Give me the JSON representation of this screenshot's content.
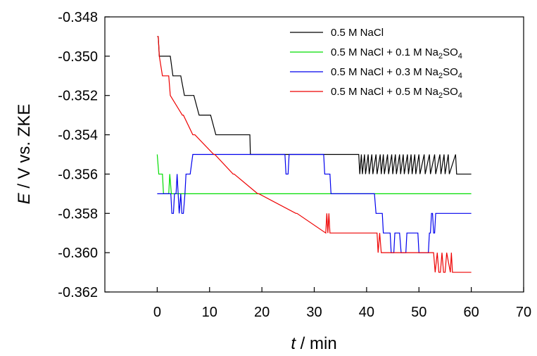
{
  "chart_data": {
    "type": "line",
    "xlim": [
      -10,
      70
    ],
    "ylim": [
      -0.362,
      -0.348
    ],
    "x_ticks": [
      0,
      10,
      20,
      30,
      40,
      50,
      60,
      70
    ],
    "x_tick_labels": [
      "0",
      "10",
      "20",
      "30",
      "40",
      "50",
      "60",
      "70"
    ],
    "y_ticks": [
      -0.348,
      -0.35,
      -0.352,
      -0.354,
      -0.356,
      -0.358,
      -0.36,
      -0.362
    ],
    "y_tick_labels": [
      "-0.348",
      "-0.350",
      "-0.352",
      "-0.354",
      "-0.356",
      "-0.358",
      "-0.360",
      "-0.362"
    ],
    "xlabel": {
      "var": "t",
      "rest": " / min"
    },
    "ylabel": {
      "var": "E",
      "rest": " / V vs. ZKE"
    },
    "grid": false,
    "legend_position": "top-right",
    "series": [
      {
        "name": "0.5 M NaCl",
        "name_parts": {
          "main": "0.5 M NaCl",
          "sub1": "",
          "mid": "",
          "sub2": ""
        },
        "color": "#000000",
        "x": [
          0.0,
          0.2,
          0.4,
          1.3,
          2.5,
          3.0,
          4.5,
          5.2,
          6.3,
          7.0,
          8.0,
          10.2,
          11.2,
          17.5,
          17.7,
          17.8,
          18.0,
          38.5,
          38.7,
          39.0,
          39.2,
          39.6,
          39.8,
          40.3,
          40.5,
          41.0,
          41.2,
          41.8,
          42.0,
          42.6,
          42.8,
          43.2,
          43.4,
          44.0,
          44.2,
          44.8,
          45.0,
          45.5,
          45.7,
          46.3,
          46.5,
          47.0,
          47.2,
          47.8,
          48.0,
          48.5,
          48.7,
          49.2,
          49.4,
          50.0,
          50.2,
          51.0,
          51.2,
          52.0,
          52.2,
          53.0,
          53.2,
          54.0,
          54.2,
          54.8,
          55.0,
          55.6,
          55.8,
          57.0,
          57.2,
          60.0
        ],
        "y": [
          -0.349,
          -0.349,
          -0.35,
          -0.35,
          -0.35,
          -0.351,
          -0.351,
          -0.352,
          -0.352,
          -0.352,
          -0.353,
          -0.353,
          -0.354,
          -0.354,
          -0.354,
          -0.355,
          -0.355,
          -0.355,
          -0.356,
          -0.355,
          -0.356,
          -0.355,
          -0.356,
          -0.355,
          -0.356,
          -0.355,
          -0.356,
          -0.355,
          -0.356,
          -0.355,
          -0.356,
          -0.355,
          -0.356,
          -0.355,
          -0.356,
          -0.355,
          -0.356,
          -0.355,
          -0.356,
          -0.355,
          -0.356,
          -0.355,
          -0.356,
          -0.355,
          -0.356,
          -0.355,
          -0.356,
          -0.355,
          -0.356,
          -0.355,
          -0.356,
          -0.355,
          -0.356,
          -0.355,
          -0.356,
          -0.355,
          -0.356,
          -0.355,
          -0.356,
          -0.355,
          -0.356,
          -0.355,
          -0.356,
          -0.355,
          -0.356,
          -0.356
        ]
      },
      {
        "name": "0.5 M NaCl + 0.1 M Na2SO4",
        "name_parts": {
          "main": "0.5 M NaCl + 0.1 M Na",
          "sub1": "2",
          "mid": "SO",
          "sub2": "4"
        },
        "color": "#00dd00",
        "x": [
          0.0,
          0.3,
          0.5,
          1.0,
          1.2,
          1.5,
          1.8,
          2.2,
          2.4,
          2.7,
          2.9,
          60.0
        ],
        "y": [
          -0.355,
          -0.356,
          -0.356,
          -0.356,
          -0.357,
          -0.357,
          -0.357,
          -0.357,
          -0.356,
          -0.357,
          -0.357,
          -0.357
        ]
      },
      {
        "name": "0.5 M NaCl + 0.3 M Na2SO4",
        "name_parts": {
          "main": "0.5 M NaCl + 0.3 M Na",
          "sub1": "2",
          "mid": "SO",
          "sub2": "4"
        },
        "color": "#0000ee",
        "x": [
          0.0,
          2.6,
          2.8,
          3.1,
          3.3,
          3.6,
          3.8,
          4.0,
          4.2,
          4.5,
          4.7,
          5.0,
          5.3,
          5.5,
          6.0,
          6.3,
          6.8,
          24.4,
          24.6,
          25.0,
          25.2,
          25.5,
          25.7,
          31.8,
          32.0,
          33.0,
          33.2,
          41.5,
          41.8,
          43.0,
          43.2,
          44.5,
          44.7,
          45.2,
          45.4,
          46.3,
          46.6,
          47.5,
          47.7,
          49.8,
          50.0,
          51.8,
          52.0,
          52.2,
          52.4,
          52.6,
          52.8,
          53.0,
          53.2,
          60.0
        ],
        "y": [
          -0.357,
          -0.357,
          -0.358,
          -0.358,
          -0.357,
          -0.357,
          -0.356,
          -0.357,
          -0.358,
          -0.357,
          -0.358,
          -0.358,
          -0.357,
          -0.356,
          -0.356,
          -0.356,
          -0.355,
          -0.355,
          -0.356,
          -0.356,
          -0.355,
          -0.355,
          -0.355,
          -0.355,
          -0.356,
          -0.356,
          -0.357,
          -0.357,
          -0.358,
          -0.358,
          -0.359,
          -0.359,
          -0.36,
          -0.36,
          -0.359,
          -0.359,
          -0.36,
          -0.36,
          -0.359,
          -0.359,
          -0.36,
          -0.36,
          -0.359,
          -0.359,
          -0.358,
          -0.358,
          -0.359,
          -0.359,
          -0.358,
          -0.358
        ]
      },
      {
        "name": "0.5 M NaCl + 0.5 M Na2SO4",
        "name_parts": {
          "main": "0.5 M NaCl + 0.5 M Na",
          "sub1": "2",
          "mid": "SO",
          "sub2": "4"
        },
        "color": "#ee0000",
        "x": [
          0.0,
          0.2,
          0.4,
          1.0,
          2.2,
          2.5,
          4.8,
          5.0,
          6.8,
          7.2,
          10.8,
          11.0,
          14.5,
          14.7,
          19.2,
          19.4,
          26.5,
          26.7,
          32.2,
          32.4,
          32.6,
          32.8,
          33.0,
          33.2,
          42.0,
          42.2,
          42.5,
          42.8,
          52.8,
          53.1,
          53.5,
          53.8,
          54.1,
          54.4,
          54.7,
          55.0,
          55.3,
          56.0,
          56.2,
          56.4,
          60.0
        ],
        "y": [
          -0.349,
          -0.349,
          -0.35,
          -0.351,
          -0.351,
          -0.352,
          -0.353,
          -0.353,
          -0.354,
          -0.354,
          -0.355,
          -0.355,
          -0.356,
          -0.356,
          -0.357,
          -0.357,
          -0.358,
          -0.358,
          -0.359,
          -0.358,
          -0.359,
          -0.358,
          -0.359,
          -0.359,
          -0.359,
          -0.36,
          -0.359,
          -0.36,
          -0.36,
          -0.361,
          -0.36,
          -0.361,
          -0.361,
          -0.36,
          -0.361,
          -0.361,
          -0.36,
          -0.361,
          -0.36,
          -0.361,
          -0.361
        ]
      }
    ]
  }
}
